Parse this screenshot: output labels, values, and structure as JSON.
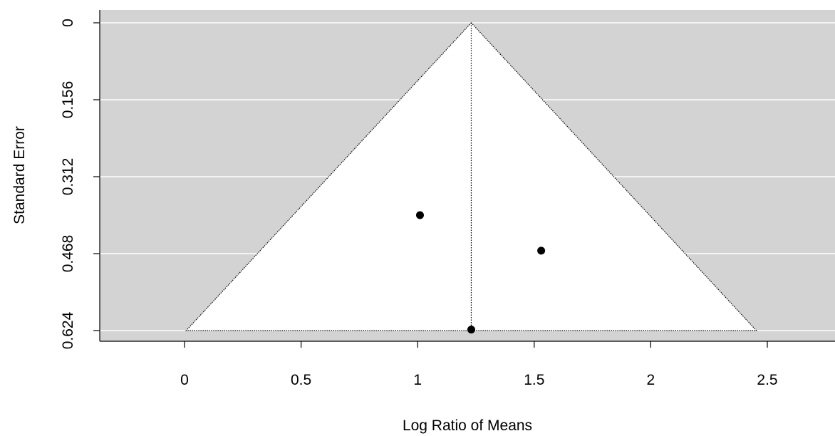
{
  "chart_data": {
    "type": "scatter",
    "title": "",
    "xlabel": "Log Ratio of Means",
    "ylabel": "Standard Error",
    "xlim": [
      -0.35,
      2.8
    ],
    "ylim": [
      0,
      0.648
    ],
    "y_reversed": true,
    "x_ticks": [
      0,
      0.5,
      1,
      1.5,
      2,
      2.5
    ],
    "x_tick_labels": [
      "0",
      "0.5",
      "1",
      "1.5",
      "2",
      "2.5"
    ],
    "y_ticks": [
      0,
      0.156,
      0.312,
      0.468,
      0.624
    ],
    "y_tick_labels": [
      "0",
      "0.156",
      "0.312",
      "0.468",
      "0.624"
    ],
    "grid": true,
    "estimate": 1.23,
    "funnel_max_se": 0.624,
    "funnel_z": 1.96,
    "points": [
      {
        "x": 1.01,
        "y": 0.39
      },
      {
        "x": 1.53,
        "y": 0.462
      },
      {
        "x": 1.23,
        "y": 0.622
      }
    ],
    "colors": {
      "background": "#d3d3d3",
      "funnel": "#ffffff",
      "grid": "#ffffff",
      "points": "#000000"
    }
  }
}
